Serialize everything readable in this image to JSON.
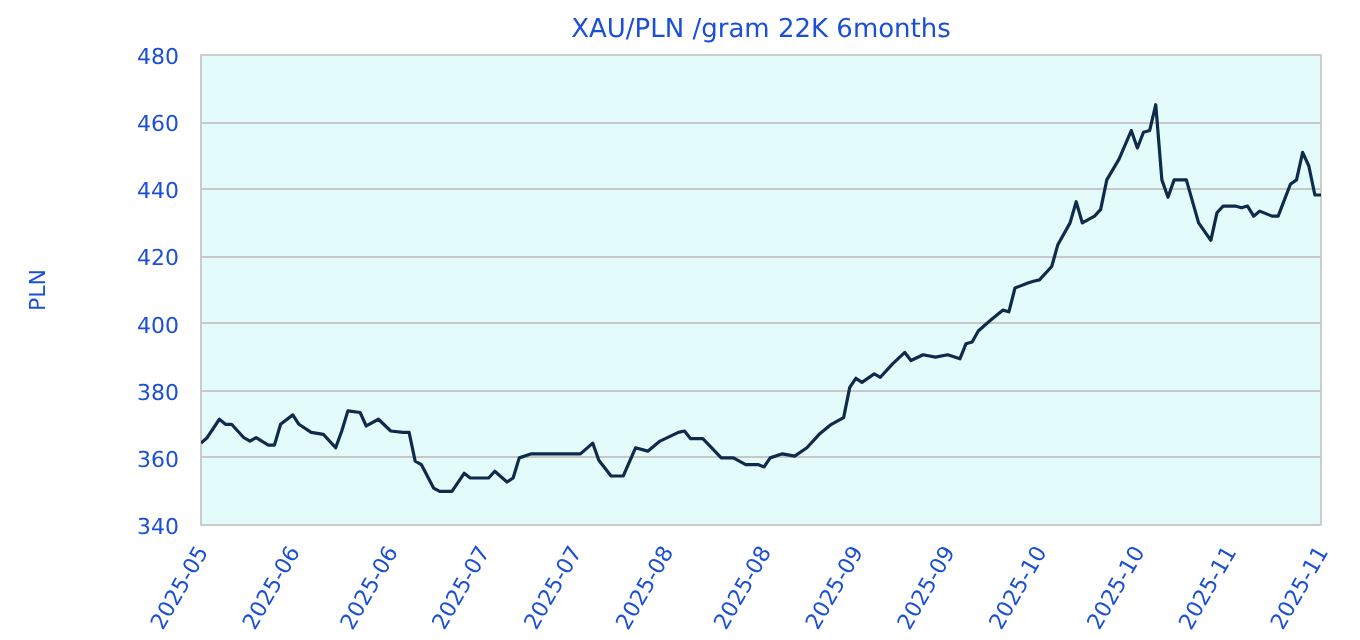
{
  "chart_data": {
    "type": "line",
    "title": "XAU/PLN /gram 22K 6months",
    "ylabel": "PLN",
    "x": [
      "2025-05-20",
      "2025-05-21",
      "2025-05-23",
      "2025-05-24",
      "2025-05-25",
      "2025-05-27",
      "2025-05-28",
      "2025-05-29",
      "2025-05-31",
      "2025-06-01",
      "2025-06-02",
      "2025-06-04",
      "2025-06-05",
      "2025-06-07",
      "2025-06-09",
      "2025-06-11",
      "2025-06-12",
      "2025-06-13",
      "2025-06-15",
      "2025-06-16",
      "2025-06-18",
      "2025-06-20",
      "2025-06-22",
      "2025-06-23",
      "2025-06-24",
      "2025-06-25",
      "2025-06-27",
      "2025-06-28",
      "2025-06-30",
      "2025-07-02",
      "2025-07-03",
      "2025-07-06",
      "2025-07-07",
      "2025-07-09",
      "2025-07-10",
      "2025-07-11",
      "2025-07-13",
      "2025-07-15",
      "2025-07-21",
      "2025-07-23",
      "2025-07-24",
      "2025-07-26",
      "2025-07-28",
      "2025-07-30",
      "2025-08-01",
      "2025-08-03",
      "2025-08-06",
      "2025-08-07",
      "2025-08-08",
      "2025-08-10",
      "2025-08-13",
      "2025-08-15",
      "2025-08-17",
      "2025-08-19",
      "2025-08-20",
      "2025-08-21",
      "2025-08-23",
      "2025-08-25",
      "2025-08-27",
      "2025-08-29",
      "2025-08-31",
      "2025-09-02",
      "2025-09-03",
      "2025-09-04",
      "2025-09-05",
      "2025-09-07",
      "2025-09-08",
      "2025-09-10",
      "2025-09-12",
      "2025-09-13",
      "2025-09-15",
      "2025-09-17",
      "2025-09-19",
      "2025-09-21",
      "2025-09-22",
      "2025-09-23",
      "2025-09-24",
      "2025-09-26",
      "2025-09-28",
      "2025-09-29",
      "2025-09-30",
      "2025-10-02",
      "2025-10-03",
      "2025-10-04",
      "2025-10-06",
      "2025-10-07",
      "2025-10-09",
      "2025-10-10",
      "2025-10-11",
      "2025-10-13",
      "2025-10-14",
      "2025-10-15",
      "2025-10-17",
      "2025-10-19",
      "2025-10-20",
      "2025-10-21",
      "2025-10-22",
      "2025-10-23",
      "2025-10-24",
      "2025-10-25",
      "2025-10-26",
      "2025-10-28",
      "2025-10-30",
      "2025-11-01",
      "2025-11-02",
      "2025-11-03",
      "2025-11-05",
      "2025-11-06",
      "2025-11-07",
      "2025-11-08",
      "2025-11-09",
      "2025-11-11",
      "2025-11-12",
      "2025-11-14",
      "2025-11-15",
      "2025-11-16",
      "2025-11-17",
      "2025-11-18",
      "2025-11-19"
    ],
    "series": [
      {
        "color": "#0f2a4a",
        "values": [
          364.4,
          366,
          371.5,
          370,
          370,
          366,
          365,
          366,
          363.8,
          363.8,
          370,
          372.8,
          370,
          367.6,
          367,
          363,
          368,
          374,
          373.5,
          369.5,
          371.5,
          368,
          367.6,
          367.6,
          359,
          358,
          351,
          350,
          350,
          355.4,
          354,
          354,
          356,
          352.8,
          354,
          360,
          361.2,
          361.2,
          361.2,
          364.4,
          359.3,
          354.6,
          354.6,
          363,
          362,
          365,
          367.6,
          368,
          365.7,
          365.7,
          360,
          360,
          358,
          358,
          357.3,
          360,
          361.2,
          360.5,
          363,
          367,
          370,
          372,
          381,
          383.7,
          382.5,
          385,
          384,
          388,
          391.4,
          389,
          390.7,
          390,
          390.7,
          389.5,
          394,
          394.5,
          397.8,
          401,
          404,
          403.5,
          410.6,
          412,
          412.6,
          413,
          417,
          423.5,
          430,
          436.3,
          430,
          432,
          434,
          442.8,
          449,
          457.5,
          452.3,
          457,
          457.5,
          465.2,
          442.8,
          437.6,
          442.8,
          442.8,
          430,
          424.8,
          433,
          435,
          435,
          434.5,
          435,
          432,
          433.5,
          432,
          432,
          441.5,
          442.8,
          451,
          447,
          438.3,
          438.3
        ]
      }
    ],
    "xlim": [
      "2025-05-20",
      "2025-11-19"
    ],
    "xticks": [
      {
        "value": "2025-05-20",
        "label": "2025-05"
      },
      {
        "value": "2025-06-04",
        "label": "2025-06"
      },
      {
        "value": "2025-06-20",
        "label": "2025-06"
      },
      {
        "value": "2025-07-05",
        "label": "2025-07"
      },
      {
        "value": "2025-07-20",
        "label": "2025-07"
      },
      {
        "value": "2025-08-04",
        "label": "2025-08"
      },
      {
        "value": "2025-08-20",
        "label": "2025-08"
      },
      {
        "value": "2025-09-04",
        "label": "2025-09"
      },
      {
        "value": "2025-09-19",
        "label": "2025-09"
      },
      {
        "value": "2025-10-04",
        "label": "2025-10"
      },
      {
        "value": "2025-10-20",
        "label": "2025-10"
      },
      {
        "value": "2025-11-04",
        "label": "2025-11"
      },
      {
        "value": "2025-11-19",
        "label": "2025-11"
      }
    ],
    "ylim": [
      340,
      480
    ],
    "yticks": [
      340,
      360,
      380,
      400,
      420,
      440,
      460,
      480
    ],
    "grid": "y",
    "line_style": "solid",
    "marker": "none"
  }
}
